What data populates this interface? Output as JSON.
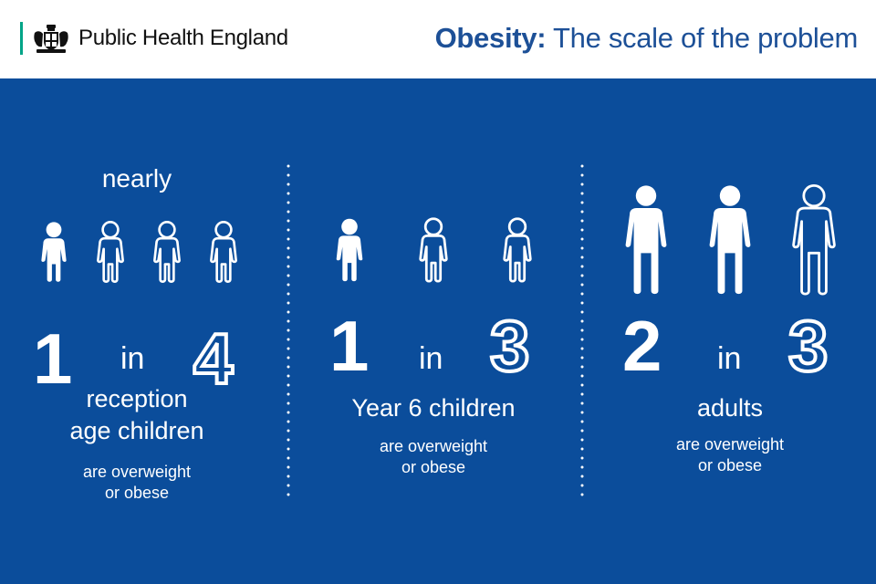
{
  "header": {
    "org_name": "Public Health England",
    "title_bold": "Obesity:",
    "title_rest": " The scale of the problem",
    "accent_color": "#00a487",
    "title_color": "#1d5097"
  },
  "panel": {
    "background": "#0b4d9b"
  },
  "stats": [
    {
      "prefix": "nearly",
      "numerator": "1",
      "in": "in",
      "denominator": "4",
      "group_line1": "reception",
      "group_line2": "age children",
      "note_line1": "are overweight",
      "note_line2": "or obese",
      "figure_type": "child",
      "filled": 1,
      "total": 4
    },
    {
      "prefix": "",
      "numerator": "1",
      "in": "in",
      "denominator": "3",
      "group_line1": "Year 6 children",
      "group_line2": "",
      "note_line1": "are overweight",
      "note_line2": "or obese",
      "figure_type": "child",
      "filled": 1,
      "total": 3
    },
    {
      "prefix": "",
      "numerator": "2",
      "in": "in",
      "denominator": "3",
      "group_line1": "adults",
      "group_line2": "",
      "note_line1": "are overweight",
      "note_line2": "or obese",
      "figure_type": "adult",
      "filled": 2,
      "total": 3
    }
  ]
}
